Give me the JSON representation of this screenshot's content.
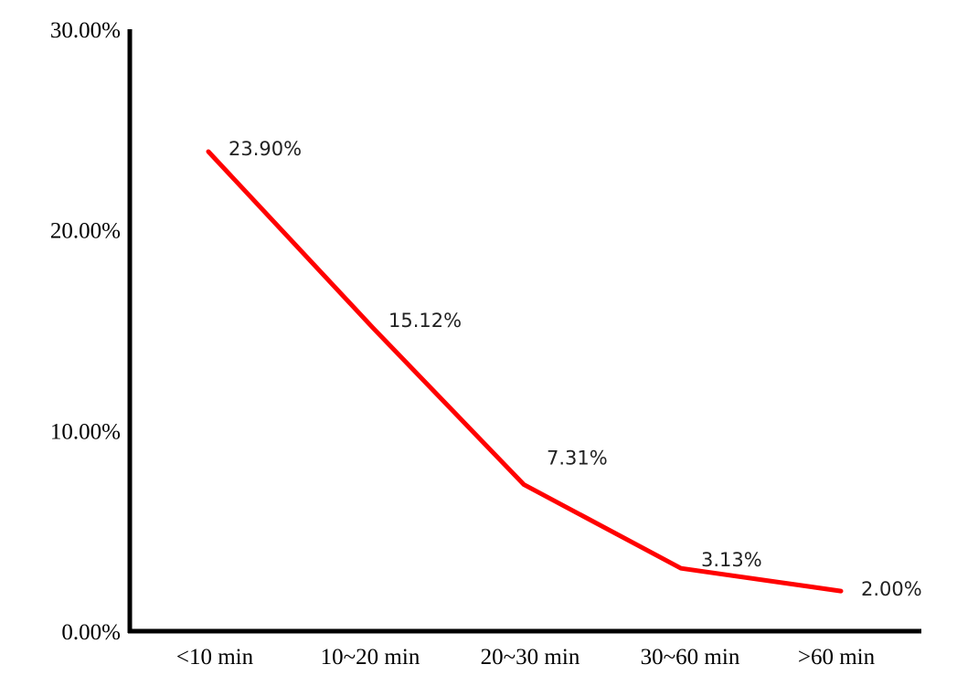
{
  "chart_data": {
    "type": "line",
    "categories": [
      "<10 min",
      "10~20 min",
      "20~30 min",
      "30~60 min",
      ">60 min"
    ],
    "series": [
      {
        "values": [
          23.9,
          15.12,
          7.31,
          3.13,
          2.0
        ],
        "labels": [
          "23.90%",
          "15.12%",
          "7.31%",
          "3.13%",
          "2.00%"
        ],
        "color": "#ff0000"
      }
    ],
    "ylim": [
      0,
      30
    ],
    "yticks": [
      0,
      10,
      20,
      30
    ],
    "ytick_labels": [
      "0.00%",
      "10.00%",
      "20.00%",
      "30.00%"
    ],
    "grid": false,
    "axis_color": "#000000"
  }
}
